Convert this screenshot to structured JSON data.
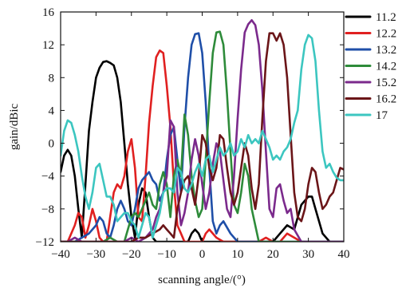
{
  "chart_data": {
    "type": "line",
    "title": "",
    "xlabel": "scanning angle/(°)",
    "ylabel": "gain/dBic",
    "xlim": [
      -40,
      40
    ],
    "ylim": [
      -12,
      16
    ],
    "xticks": [
      -40,
      -30,
      -20,
      -10,
      0,
      10,
      20,
      30,
      40
    ],
    "yticks": [
      -12,
      -8,
      -4,
      0,
      4,
      8,
      12,
      16
    ],
    "grid": false,
    "legend_position": "outside-right",
    "series": [
      {
        "name": "11.2",
        "color": "#000000",
        "x": [
          -40,
          -39,
          -38,
          -37,
          -36,
          -35,
          -34,
          -33,
          -32,
          -31,
          -30,
          -29,
          -28,
          -27,
          -26,
          -25,
          -24,
          -23,
          -22,
          -21,
          -20,
          -19,
          -18,
          -17,
          -16,
          -15,
          -14,
          -13,
          -12,
          -11,
          -10,
          -9,
          -8,
          -7,
          -6,
          -5,
          -4,
          -3,
          -2,
          -1,
          0,
          2,
          4,
          6,
          8,
          10,
          12,
          14,
          16,
          18,
          20,
          22,
          24,
          26,
          28,
          30,
          31,
          32,
          34,
          36,
          38,
          40
        ],
        "y": [
          -3.5,
          -1.5,
          -0.8,
          -1.5,
          -4,
          -8,
          -11.5,
          -5,
          1.5,
          5,
          8,
          9.2,
          9.9,
          10,
          9.8,
          9.5,
          8,
          5,
          0,
          -5,
          -9,
          -11.5,
          -7.5,
          -5.5,
          -6,
          -9,
          -11.5,
          -12,
          -12,
          -12,
          -12,
          -12,
          -12,
          -12,
          -12,
          -12,
          -12,
          -11,
          -10.5,
          -11,
          -12,
          -12,
          -12,
          -12,
          -12,
          -12,
          -12,
          -12,
          -12,
          -12,
          -12,
          -11,
          -10,
          -10.5,
          -7.5,
          -6.5,
          -6.5,
          -8,
          -11,
          -12,
          -12,
          -12
        ]
      },
      {
        "name": "12.2",
        "color": "#e02020",
        "x": [
          -40,
          -38,
          -36,
          -35,
          -34,
          -33,
          -32,
          -31,
          -30,
          -29,
          -28,
          -27,
          -26,
          -25,
          -24,
          -23,
          -22,
          -21,
          -20,
          -19,
          -18,
          -17,
          -16,
          -15,
          -14,
          -13,
          -12,
          -11,
          -10,
          -9,
          -8,
          -7,
          -6,
          -5,
          -4,
          -3,
          -2,
          -1,
          0,
          1,
          2,
          4,
          6,
          8,
          10,
          12,
          14,
          16,
          18,
          20,
          22,
          24,
          26,
          28,
          30,
          32,
          34,
          36,
          38,
          40
        ],
        "y": [
          -12,
          -12,
          -10,
          -8.5,
          -9,
          -11.5,
          -10,
          -8,
          -9.5,
          -11.5,
          -12,
          -12,
          -9,
          -6,
          -5,
          -5.5,
          -4,
          -1,
          0.5,
          -3,
          -9,
          -9.5,
          -4,
          2.5,
          7,
          10.5,
          11.3,
          11,
          7,
          2,
          -5,
          -10,
          -11,
          -12,
          -12,
          -12,
          -12,
          -12,
          -12,
          -11,
          -10.5,
          -11.5,
          -12,
          -12,
          -12,
          -12,
          -12,
          -12,
          -11.5,
          -12,
          -12,
          -11,
          -11.5,
          -12,
          -12,
          -12,
          -12,
          -12,
          -12,
          -12
        ]
      },
      {
        "name": "13.2",
        "color": "#1f4fa8",
        "x": [
          -40,
          -38,
          -36,
          -34,
          -32,
          -30,
          -29,
          -28,
          -27,
          -26,
          -25,
          -24,
          -23,
          -22,
          -21,
          -20,
          -19,
          -18,
          -17,
          -16,
          -15,
          -14,
          -13,
          -12,
          -11,
          -10,
          -9,
          -8,
          -7,
          -6,
          -5,
          -4,
          -3,
          -2,
          -1,
          0,
          1,
          2,
          3,
          4,
          5,
          6,
          8,
          10,
          12,
          14,
          16,
          18,
          20,
          22,
          24,
          26,
          28,
          30,
          32,
          34,
          36,
          38,
          40
        ],
        "y": [
          -12,
          -12,
          -12,
          -11.5,
          -11,
          -10,
          -9,
          -9.5,
          -11,
          -11.5,
          -10,
          -8,
          -7,
          -8,
          -9.5,
          -10,
          -8,
          -5.5,
          -4.5,
          -4,
          -3.5,
          -4.5,
          -5,
          -7,
          -6,
          -2,
          1,
          2,
          -2,
          -6,
          2,
          8,
          12,
          13.3,
          13.4,
          11,
          5,
          -3,
          -9.5,
          -11,
          -10,
          -9.5,
          -11,
          -12,
          -12,
          -12,
          -12,
          -12,
          -12,
          -12,
          -12,
          -12,
          -12,
          -12,
          -12,
          -12,
          -12,
          -12,
          -12
        ]
      },
      {
        "name": "14.2",
        "color": "#2e8b3a",
        "x": [
          -40,
          -38,
          -36,
          -34,
          -32,
          -30,
          -28,
          -26,
          -24,
          -22,
          -20,
          -19,
          -18,
          -17,
          -16,
          -15,
          -14,
          -13,
          -12,
          -11,
          -10,
          -9,
          -8,
          -7,
          -6,
          -5,
          -4,
          -3,
          -2,
          -1,
          0,
          1,
          2,
          3,
          4,
          5,
          6,
          7,
          8,
          9,
          10,
          11,
          12,
          13,
          14,
          16,
          18,
          20,
          22,
          24,
          26,
          28,
          30,
          32,
          34,
          36,
          38,
          40
        ],
        "y": [
          -12,
          -12,
          -12,
          -12,
          -12,
          -12,
          -12,
          -11.5,
          -12,
          -12,
          -9,
          -8.5,
          -9,
          -8,
          -7,
          -6,
          -7.5,
          -8,
          -5,
          -3.5,
          -5,
          -9,
          -4,
          -2,
          -4,
          3.5,
          1,
          -4,
          -7,
          -9,
          -8,
          -2,
          5,
          11,
          13.5,
          13.6,
          12,
          6,
          -1,
          -7.5,
          -8.5,
          -6,
          -2.5,
          -4,
          -8,
          -12,
          -12,
          -12,
          -12,
          -12,
          -12,
          -12,
          -12,
          -12,
          -12,
          -12,
          -12,
          -12
        ]
      },
      {
        "name": "15.2",
        "color": "#7b2a8c",
        "x": [
          -40,
          -38,
          -36,
          -34,
          -32,
          -30,
          -28,
          -26,
          -24,
          -22,
          -20,
          -18,
          -16,
          -14,
          -13,
          -12,
          -11,
          -10,
          -9,
          -8,
          -7,
          -6,
          -5,
          -4,
          -3,
          -2,
          -1,
          0,
          1,
          2,
          3,
          4,
          5,
          6,
          7,
          8,
          9,
          10,
          11,
          12,
          13,
          14,
          15,
          16,
          17,
          18,
          19,
          20,
          21,
          22,
          23,
          24,
          25,
          26,
          28,
          30,
          32,
          34,
          36,
          38,
          40
        ],
        "y": [
          -12,
          -12,
          -11.5,
          -12,
          -12,
          -12,
          -12,
          -12,
          -12,
          -12,
          -11.5,
          -12,
          -11.5,
          -10.5,
          -9,
          -8,
          -6,
          -4,
          2.8,
          2,
          -6,
          -10,
          -8.5,
          -6,
          -2,
          0.5,
          -1.5,
          -5,
          -8,
          -6,
          -2.5,
          0,
          -1,
          -4.5,
          -8,
          -9,
          -4,
          3,
          9,
          13.5,
          14.5,
          15,
          14.4,
          12,
          6.5,
          -1,
          -8,
          -9,
          -5.5,
          -5,
          -7,
          -8.5,
          -8,
          -10.5,
          -12,
          -12,
          -12,
          -12,
          -12,
          -12,
          -12
        ]
      },
      {
        "name": "16.2",
        "color": "#6b1518",
        "x": [
          -40,
          -36,
          -32,
          -28,
          -24,
          -20,
          -18,
          -16,
          -14,
          -12,
          -11,
          -10,
          -9,
          -8,
          -7,
          -6,
          -5,
          -4,
          -3,
          -2,
          -1,
          0,
          1,
          2,
          3,
          4,
          5,
          6,
          7,
          8,
          9,
          10,
          11,
          12,
          13,
          14,
          15,
          16,
          17,
          18,
          19,
          20,
          21,
          22,
          23,
          24,
          25,
          26,
          27,
          28,
          29,
          30,
          31,
          32,
          33,
          34,
          35,
          36,
          37,
          38,
          39,
          40
        ],
        "y": [
          -12,
          -12,
          -12,
          -12,
          -12,
          -12,
          -11.5,
          -11.5,
          -11,
          -10.5,
          -10,
          -10.5,
          -11,
          -11.5,
          -8,
          -6,
          -4.5,
          -4,
          -5.5,
          -7.5,
          -4,
          1,
          0,
          -3,
          -4.5,
          -3,
          1,
          0.5,
          -3,
          -6,
          -7.5,
          -6,
          -3,
          0,
          -1.5,
          -5.5,
          -8,
          -5,
          3,
          10,
          13.4,
          13.4,
          12.5,
          13.4,
          12,
          8,
          1,
          -6,
          -9,
          -9.5,
          -8,
          -5,
          -3,
          -3.5,
          -6,
          -8,
          -7.5,
          -6.5,
          -6,
          -4.5,
          -3,
          -3.2
        ]
      },
      {
        "name": "17",
        "color": "#3cc6c0",
        "x": [
          -40,
          -39,
          -38,
          -37,
          -36,
          -35,
          -34,
          -33,
          -32,
          -31,
          -30,
          -29,
          -28,
          -27,
          -26,
          -25,
          -24,
          -23,
          -22,
          -21,
          -20,
          -19,
          -18,
          -17,
          -16,
          -15,
          -14,
          -13,
          -12,
          -11,
          -10,
          -9,
          -8,
          -7,
          -6,
          -5,
          -4,
          -3,
          -2,
          -1,
          0,
          1,
          2,
          3,
          4,
          5,
          6,
          7,
          8,
          9,
          10,
          11,
          12,
          13,
          14,
          15,
          16,
          17,
          18,
          19,
          20,
          21,
          22,
          23,
          24,
          25,
          26,
          27,
          28,
          29,
          30,
          31,
          32,
          33,
          34,
          35,
          36,
          37,
          38,
          39,
          40
        ],
        "y": [
          -1.5,
          1.5,
          2.8,
          2.5,
          1,
          -1,
          -4,
          -6.5,
          -8,
          -6,
          -3,
          -2.5,
          -4.5,
          -6.5,
          -6.5,
          -7.5,
          -9.5,
          -9,
          -8.5,
          -8.5,
          -9.5,
          -10,
          -11.5,
          -10,
          -8.5,
          -9,
          -11.5,
          -10,
          -8.5,
          -6,
          -5.5,
          -5.5,
          -6,
          -3,
          -3.5,
          -5.5,
          -6,
          -5,
          -3.5,
          -2.5,
          -4,
          -2,
          -1.5,
          -3.5,
          -2,
          -0.5,
          -1.5,
          -1,
          0,
          -1.5,
          -1,
          0.5,
          -0.5,
          1,
          0,
          0.5,
          0,
          1.5,
          0.5,
          -0.5,
          -2,
          -1.5,
          -2,
          -1,
          -0.5,
          0.5,
          2.5,
          4,
          9,
          12,
          13.2,
          12.8,
          10,
          4,
          -1,
          -3,
          -2.5,
          -3.5,
          -4.2,
          -4.5,
          -4.5
        ]
      }
    ]
  }
}
